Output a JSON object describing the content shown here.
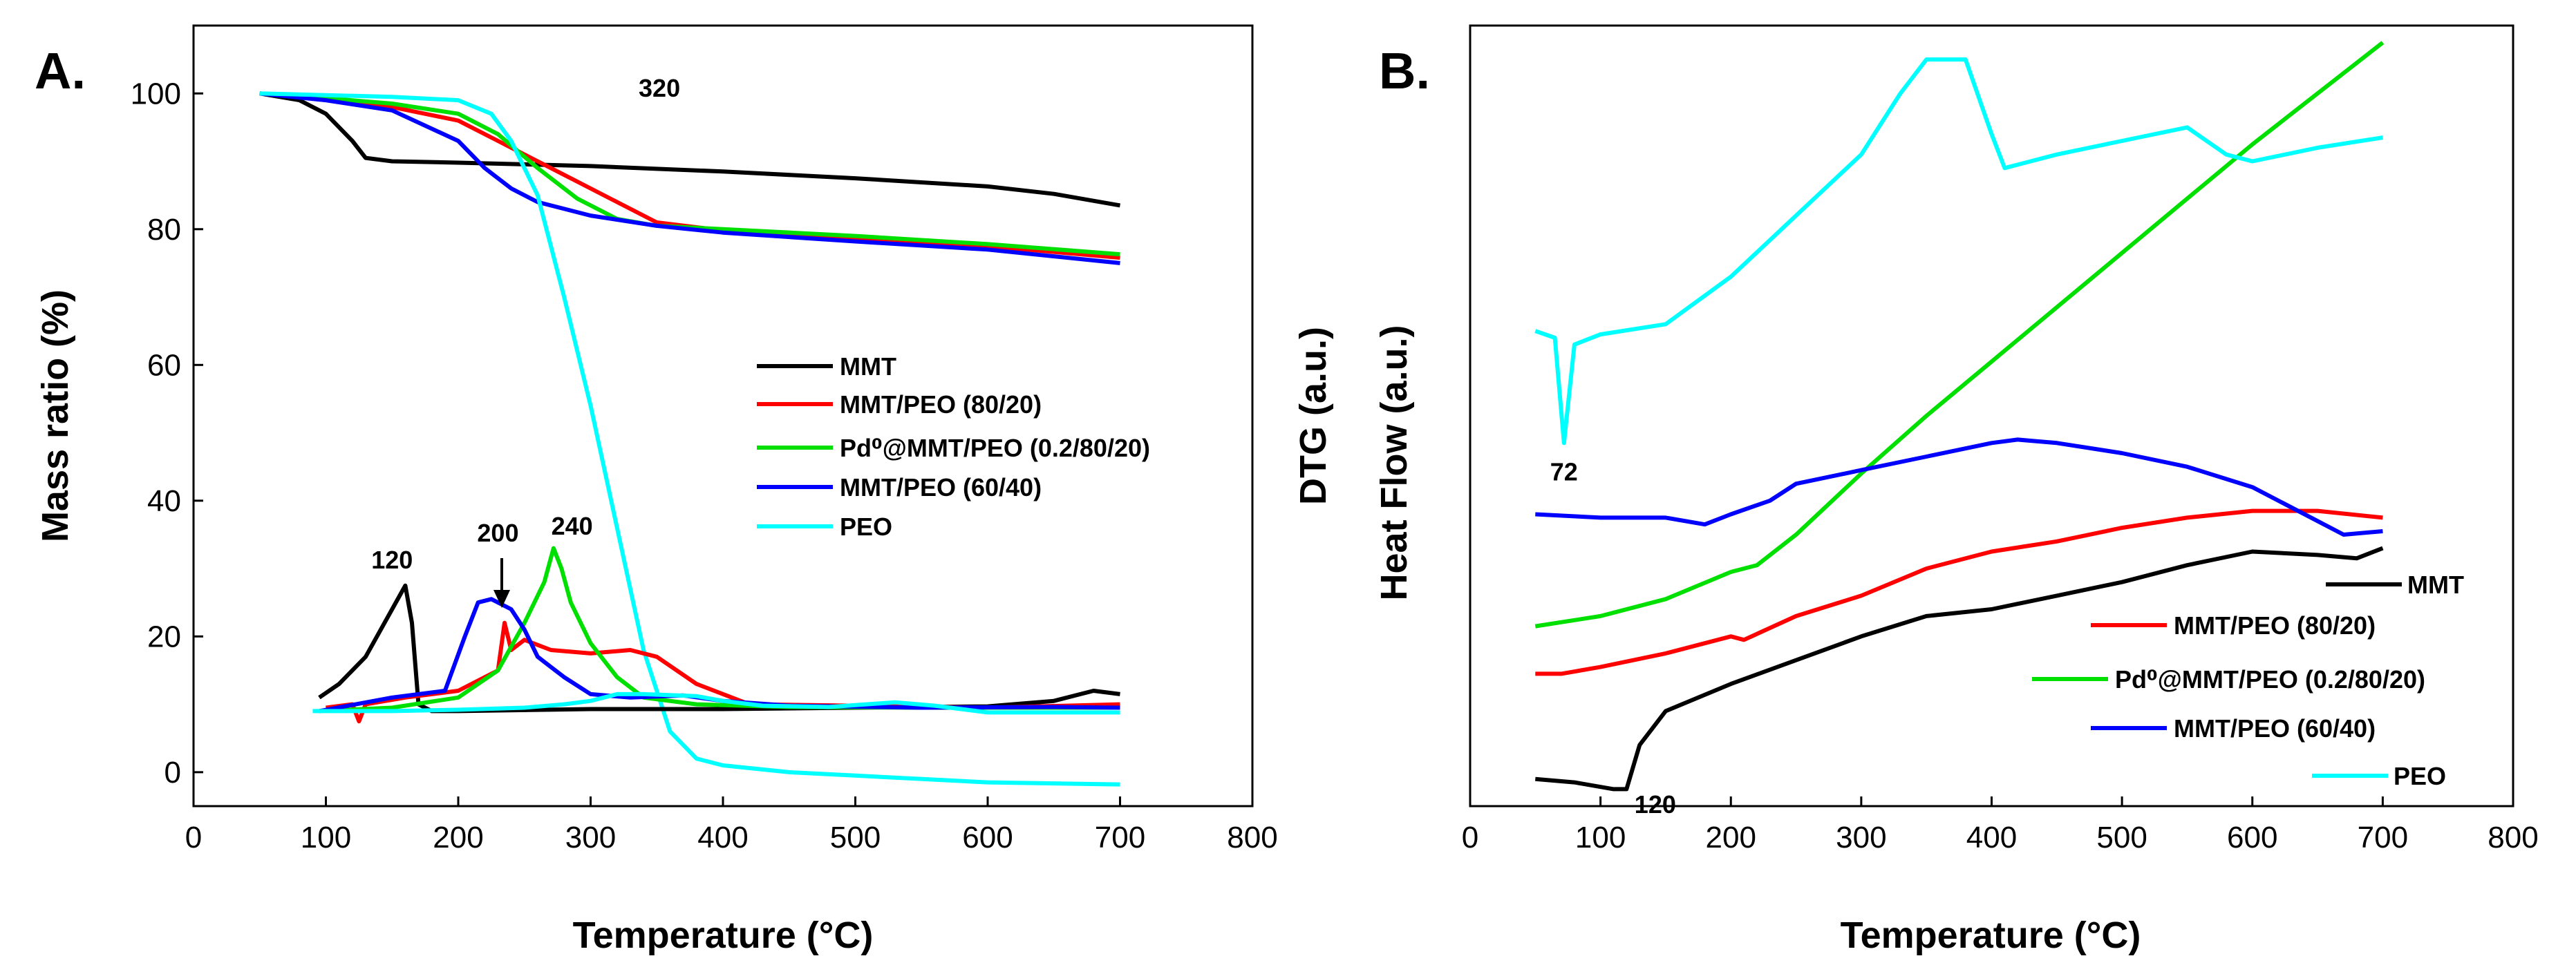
{
  "chart_data": [
    {
      "panel": "A.",
      "type": "line",
      "title": "",
      "xlabel": "Temperature (°C)",
      "ylabel": "Mass ratio (%)",
      "xlim": [
        0,
        800
      ],
      "ylim": [
        -5,
        110
      ],
      "xticks": [
        0,
        100,
        200,
        300,
        400,
        500,
        600,
        700,
        800
      ],
      "yticks": [
        0,
        20,
        40,
        60,
        80,
        100
      ],
      "legend_position": "right-center",
      "colors": {
        "MMT": "#000000",
        "MMT/PEO (80/20)": "#ff0000",
        "Pd0@MMT/PEO (0.2/80/20)": "#00e000",
        "MMT/PEO (60/40)": "#0000ff",
        "PEO": "#00ffff"
      },
      "series": [
        {
          "name": "MMT",
          "legend": "MMT",
          "color": "#000000",
          "kind": "TGA",
          "x": [
            50,
            80,
            100,
            120,
            130,
            150,
            200,
            300,
            400,
            500,
            600,
            650,
            700
          ],
          "y": [
            100,
            99,
            97,
            93,
            90.5,
            90,
            89.8,
            89.3,
            88.5,
            87.5,
            86.3,
            85.2,
            83.5
          ]
        },
        {
          "name": "MMT/PEO (80/20)",
          "legend": "MMT/PEO (80/20)",
          "color": "#ff0000",
          "kind": "TGA",
          "x": [
            50,
            100,
            150,
            200,
            230,
            260,
            290,
            320,
            350,
            400,
            500,
            600,
            700
          ],
          "y": [
            100,
            99.3,
            98,
            96,
            93,
            90,
            87,
            84,
            81,
            79.8,
            78.5,
            77.5,
            75.8
          ]
        },
        {
          "name": "Pd0@MMT/PEO (0.2/80/20)",
          "legend": "Pd⁰@MMT/PEO (0.2/80/20)",
          "color": "#00e000",
          "kind": "TGA",
          "x": [
            50,
            100,
            150,
            200,
            230,
            260,
            290,
            320,
            350,
            400,
            500,
            600,
            700
          ],
          "y": [
            100,
            99.3,
            98.5,
            97,
            94,
            89,
            84.5,
            81.5,
            80.5,
            80,
            79,
            77.8,
            76.3
          ]
        },
        {
          "name": "MMT/PEO (60/40)",
          "legend": "MMT/PEO (60/40)",
          "color": "#0000ff",
          "kind": "TGA",
          "x": [
            50,
            100,
            150,
            200,
            220,
            240,
            260,
            300,
            350,
            400,
            500,
            600,
            700
          ],
          "y": [
            100,
            99,
            97.5,
            93,
            89,
            86,
            84,
            82,
            80.5,
            79.5,
            78.2,
            77,
            75
          ]
        },
        {
          "name": "PEO",
          "legend": "PEO",
          "color": "#00ffff",
          "kind": "TGA",
          "x": [
            50,
            150,
            200,
            225,
            240,
            260,
            280,
            300,
            320,
            340,
            360,
            380,
            400,
            450,
            500,
            600,
            700
          ],
          "y": [
            100,
            99.5,
            99,
            97,
            93,
            85,
            70,
            54,
            36,
            18,
            6,
            2,
            1,
            0,
            -0.5,
            -1.5,
            -1.8
          ]
        },
        {
          "name": "MMT DTG",
          "color": "#000000",
          "kind": "DTG",
          "x": [
            95,
            110,
            130,
            150,
            160,
            165,
            170,
            180,
            200,
            300,
            400,
            500,
            600,
            650,
            680,
            700
          ],
          "y": [
            11,
            13,
            17,
            24,
            27.5,
            22,
            10,
            9,
            9,
            9.3,
            9.3,
            9.5,
            9.7,
            10.5,
            12,
            11.5
          ]
        },
        {
          "name": "MMT/PEO (80/20) DTG",
          "color": "#ff0000",
          "kind": "DTG",
          "x": [
            100,
            120,
            125,
            130,
            160,
            200,
            230,
            235,
            240,
            250,
            270,
            300,
            330,
            350,
            380,
            420,
            500,
            600,
            700
          ],
          "y": [
            9.5,
            10,
            7.5,
            10,
            11,
            12,
            15,
            22,
            18,
            19.5,
            18,
            17.5,
            18,
            17,
            13,
            10,
            9.8,
            9.5,
            10
          ]
        },
        {
          "name": "Pd0@MMT/PEO (0.2/80/20) DTG",
          "color": "#00e000",
          "kind": "DTG",
          "x": [
            95,
            150,
            200,
            230,
            250,
            265,
            272,
            278,
            285,
            300,
            320,
            340,
            380,
            450,
            550,
            650,
            700
          ],
          "y": [
            9,
            9.5,
            11,
            15,
            22,
            28,
            33,
            30,
            25,
            19,
            14,
            11,
            10,
            9.6,
            9.5,
            9.5,
            9.5
          ]
        },
        {
          "name": "MMT/PEO (60/40) DTG",
          "color": "#0000ff",
          "kind": "DTG",
          "x": [
            95,
            150,
            190,
            205,
            215,
            225,
            240,
            250,
            260,
            270,
            280,
            300,
            330,
            370,
            400,
            450,
            550,
            650,
            700
          ],
          "y": [
            9,
            11,
            12,
            20,
            25,
            25.5,
            24,
            21,
            17,
            15.5,
            14,
            11.5,
            11,
            11.3,
            10.5,
            9.8,
            9.5,
            9.6,
            9.5
          ]
        },
        {
          "name": "PEO DTG",
          "color": "#00ffff",
          "kind": "DTG",
          "x": [
            90,
            150,
            200,
            250,
            280,
            300,
            320,
            340,
            380,
            400,
            430,
            480,
            530,
            560,
            600,
            700
          ],
          "y": [
            9,
            9,
            9.2,
            9.5,
            10,
            10.5,
            11.5,
            11.5,
            11.2,
            10.5,
            9.8,
            9.6,
            10.3,
            9.8,
            8.8,
            8.8
          ]
        }
      ],
      "annotations": [
        {
          "text": "120",
          "x": 150,
          "y": 30
        },
        {
          "text": "200",
          "x": 230,
          "y": 34
        },
        {
          "text": "240",
          "x": 286,
          "y": 35
        },
        {
          "text": "320",
          "x": 352,
          "y": 99.5
        }
      ]
    },
    {
      "panel": "B.",
      "type": "line",
      "title": "",
      "xlabel": "Temperature (°C)",
      "ylabel": "DTG (a.u.)",
      "ylabel2": "Heat Flow (a.u.)",
      "xlim": [
        0,
        800
      ],
      "ylim": [
        0,
        115
      ],
      "xticks": [
        0,
        100,
        200,
        300,
        400,
        500,
        600,
        700,
        800
      ],
      "yticks": [],
      "legend_position": "bottom-right",
      "series": [
        {
          "name": "MMT",
          "legend": "MMT",
          "color": "#000000",
          "x": [
            50,
            80,
            110,
            120,
            130,
            150,
            200,
            250,
            300,
            350,
            400,
            450,
            500,
            550,
            600,
            650,
            680,
            700
          ],
          "y": [
            4,
            3.5,
            2.5,
            2.5,
            9,
            14,
            18,
            21.5,
            25,
            28,
            29,
            31,
            33,
            35.5,
            37.5,
            37,
            36.5,
            38
          ]
        },
        {
          "name": "MMT/PEO (80/20)",
          "legend": "MMT/PEO (80/20)",
          "color": "#ff0000",
          "x": [
            50,
            70,
            100,
            150,
            200,
            210,
            250,
            300,
            350,
            400,
            450,
            500,
            550,
            600,
            650,
            700
          ],
          "y": [
            19.5,
            19.5,
            20.5,
            22.5,
            25,
            24.5,
            28,
            31,
            35,
            37.5,
            39,
            41,
            42.5,
            43.5,
            43.5,
            42.5
          ]
        },
        {
          "name": "Pd0@MMT/PEO (0.2/80/20)",
          "legend": "Pd⁰@MMT/PEO (0.2/80/20)",
          "color": "#00e000",
          "x": [
            50,
            100,
            150,
            200,
            220,
            250,
            300,
            350,
            400,
            450,
            500,
            550,
            600,
            650,
            700
          ],
          "y": [
            26.5,
            28,
            30.5,
            34.5,
            35.5,
            40,
            49,
            57.5,
            65.5,
            73.5,
            81.5,
            89.5,
            97.5,
            105,
            112.5
          ]
        },
        {
          "name": "MMT/PEO (60/40)",
          "legend": "MMT/PEO (60/40)",
          "color": "#0000ff",
          "x": [
            50,
            100,
            150,
            180,
            200,
            230,
            250,
            300,
            350,
            400,
            420,
            450,
            500,
            550,
            600,
            650,
            670,
            700
          ],
          "y": [
            43,
            42.5,
            42.5,
            41.5,
            43,
            45,
            47.5,
            49.5,
            51.5,
            53.5,
            54,
            53.5,
            52,
            50,
            47,
            42,
            40,
            40.5
          ]
        },
        {
          "name": "PEO",
          "legend": "PEO",
          "color": "#00ffff",
          "x": [
            50,
            65,
            72,
            80,
            100,
            150,
            200,
            250,
            300,
            330,
            350,
            380,
            400,
            410,
            450,
            500,
            550,
            580,
            600,
            650,
            700
          ],
          "y": [
            70,
            69,
            53.5,
            68,
            69.5,
            71,
            78,
            87,
            96,
            105,
            110,
            110,
            99,
            94,
            96,
            98,
            100,
            96,
            95,
            97,
            98.5
          ]
        }
      ],
      "annotations": [
        {
          "text": "72",
          "x": 72,
          "y": 48
        },
        {
          "text": "120",
          "x": 142,
          "y": -1
        }
      ]
    }
  ]
}
